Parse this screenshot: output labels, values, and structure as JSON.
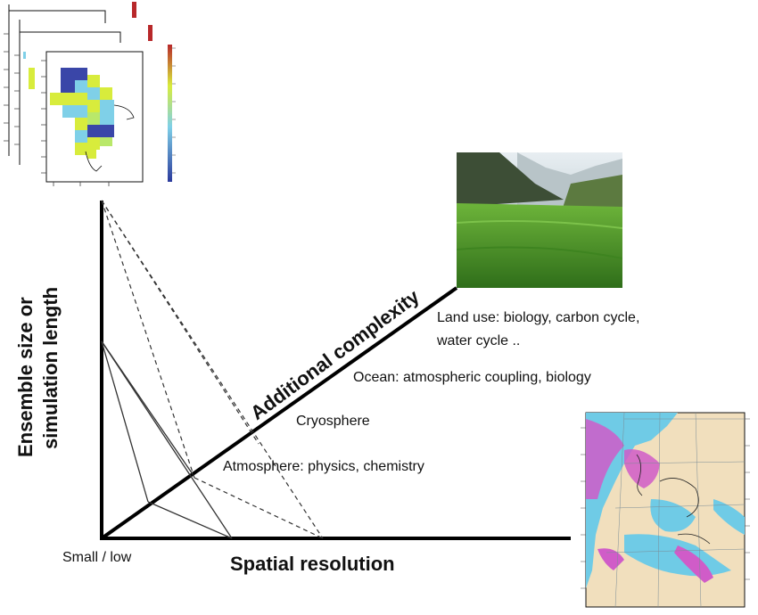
{
  "axes": {
    "vertical": {
      "line1": "Ensemble size or",
      "line2": "simulation length"
    },
    "horizontal": "Spatial resolution",
    "diagonal": "Additional complexity",
    "origin": "Small / low"
  },
  "layers": [
    {
      "id": "atmosphere",
      "text": "Atmosphere: physics, chemistry"
    },
    {
      "id": "cryosphere",
      "text": "Cryosphere"
    },
    {
      "id": "ocean",
      "text": "Ocean: atmospheric coupling, biology"
    },
    {
      "id": "land-use",
      "lines": [
        "Land use: biology, carbon cycle,",
        "water cycle .."
      ]
    }
  ],
  "images": {
    "ensemble_maps": "stacked-grid-maps",
    "landscape_photo": "green-valley-photo",
    "europe_map": "europe-ocean-map"
  },
  "colors": {
    "axis": "#000000",
    "sky": "#c9d3dc",
    "grass": "#4f9a2a",
    "mountain": "#4a5c44",
    "sea": "#6fcbe6",
    "sea_deep": "#d05cc8",
    "land": "#f1dfbd",
    "grid_blue": "#3a46a8",
    "grid_cyan": "#7fd0e8",
    "grid_yellow": "#d8ec3c",
    "colorbar_red": "#b8282a"
  }
}
